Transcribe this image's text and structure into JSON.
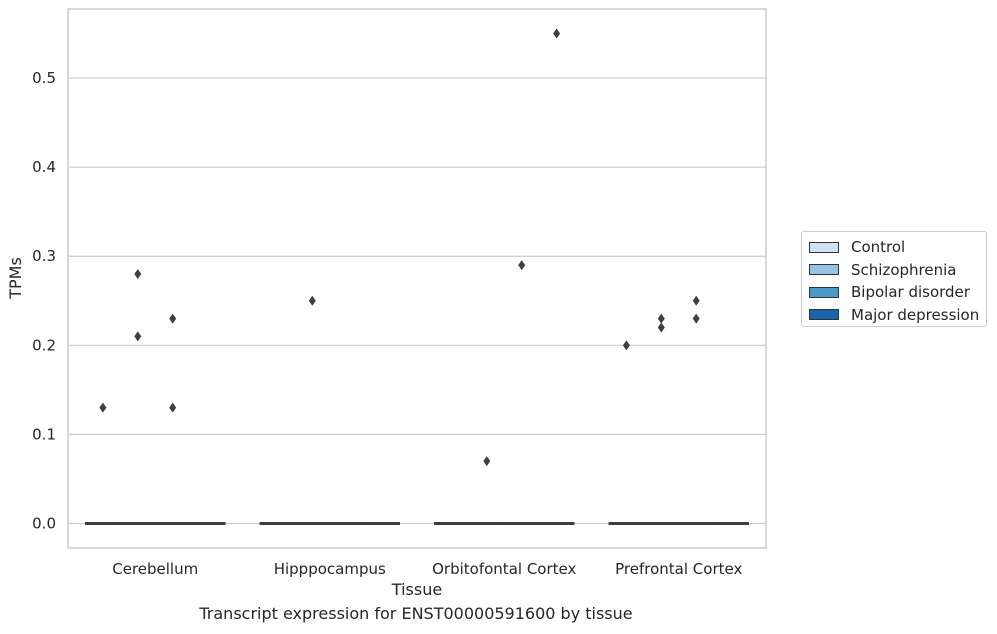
{
  "chart_data": {
    "type": "box",
    "title": "",
    "caption": "Transcript expression for ENST00000591600 by tissue",
    "xlabel": "Tissue",
    "ylabel": "TPMs",
    "categories": [
      "Cerebellum",
      "Hipppocampus",
      "Orbitofontal Cortex",
      "Prefrontal Cortex"
    ],
    "ylim": [
      -0.0275,
      0.5775
    ],
    "yticks": [
      "0.0",
      "0.1",
      "0.2",
      "0.3",
      "0.4",
      "0.5"
    ],
    "grid": true,
    "legend_position": "right",
    "series": [
      {
        "name": "Control",
        "color": "#d0e1f2",
        "medians": [
          0,
          0,
          0,
          0
        ],
        "outliers": [
          [
            0.13
          ],
          [],
          [],
          [
            0.2
          ]
        ]
      },
      {
        "name": "Schizophrenia",
        "color": "#94c4df",
        "medians": [
          0,
          0,
          0,
          0
        ],
        "outliers": [
          [
            0.21,
            0.28
          ],
          [
            0.25
          ],
          [
            0.07
          ],
          [
            0.22,
            0.23
          ]
        ]
      },
      {
        "name": "Bipolar disorder",
        "color": "#4a98c9",
        "medians": [
          0,
          0,
          0,
          0
        ],
        "outliers": [
          [
            0.13,
            0.23
          ],
          [],
          [
            0.29
          ],
          [
            0.23,
            0.25
          ]
        ]
      },
      {
        "name": "Major depression",
        "color": "#1764ab",
        "medians": [
          0,
          0,
          0,
          0
        ],
        "outliers": [
          [],
          [],
          [
            0.55
          ],
          []
        ]
      }
    ]
  }
}
